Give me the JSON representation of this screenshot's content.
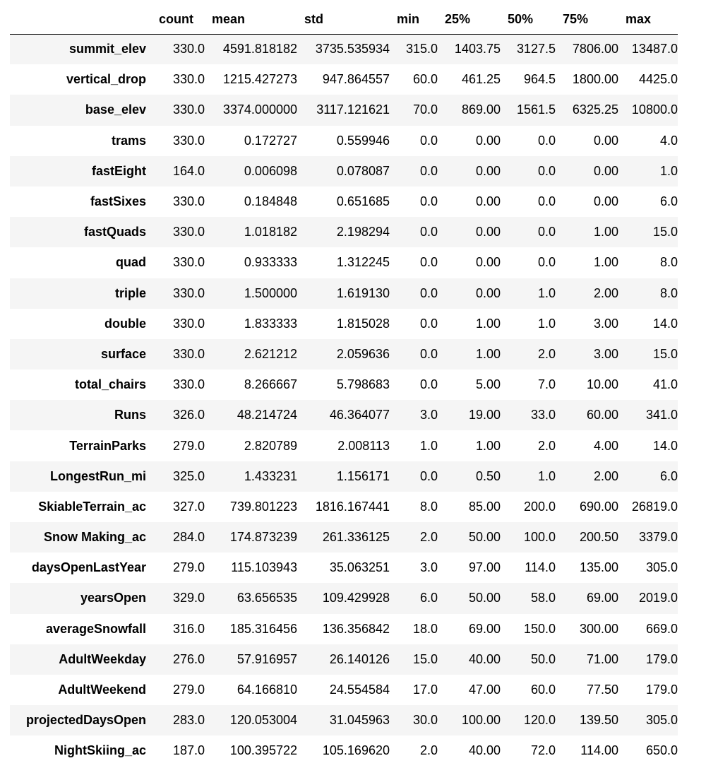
{
  "columns": [
    "count",
    "mean",
    "std",
    "min",
    "25%",
    "50%",
    "75%",
    "max"
  ],
  "rows": [
    {
      "label": "summit_elev",
      "values": [
        "330.0",
        "4591.818182",
        "3735.535934",
        "315.0",
        "1403.75",
        "3127.5",
        "7806.00",
        "13487.0"
      ]
    },
    {
      "label": "vertical_drop",
      "values": [
        "330.0",
        "1215.427273",
        "947.864557",
        "60.0",
        "461.25",
        "964.5",
        "1800.00",
        "4425.0"
      ]
    },
    {
      "label": "base_elev",
      "values": [
        "330.0",
        "3374.000000",
        "3117.121621",
        "70.0",
        "869.00",
        "1561.5",
        "6325.25",
        "10800.0"
      ]
    },
    {
      "label": "trams",
      "values": [
        "330.0",
        "0.172727",
        "0.559946",
        "0.0",
        "0.00",
        "0.0",
        "0.00",
        "4.0"
      ]
    },
    {
      "label": "fastEight",
      "values": [
        "164.0",
        "0.006098",
        "0.078087",
        "0.0",
        "0.00",
        "0.0",
        "0.00",
        "1.0"
      ]
    },
    {
      "label": "fastSixes",
      "values": [
        "330.0",
        "0.184848",
        "0.651685",
        "0.0",
        "0.00",
        "0.0",
        "0.00",
        "6.0"
      ]
    },
    {
      "label": "fastQuads",
      "values": [
        "330.0",
        "1.018182",
        "2.198294",
        "0.0",
        "0.00",
        "0.0",
        "1.00",
        "15.0"
      ]
    },
    {
      "label": "quad",
      "values": [
        "330.0",
        "0.933333",
        "1.312245",
        "0.0",
        "0.00",
        "0.0",
        "1.00",
        "8.0"
      ]
    },
    {
      "label": "triple",
      "values": [
        "330.0",
        "1.500000",
        "1.619130",
        "0.0",
        "0.00",
        "1.0",
        "2.00",
        "8.0"
      ]
    },
    {
      "label": "double",
      "values": [
        "330.0",
        "1.833333",
        "1.815028",
        "0.0",
        "1.00",
        "1.0",
        "3.00",
        "14.0"
      ]
    },
    {
      "label": "surface",
      "values": [
        "330.0",
        "2.621212",
        "2.059636",
        "0.0",
        "1.00",
        "2.0",
        "3.00",
        "15.0"
      ]
    },
    {
      "label": "total_chairs",
      "values": [
        "330.0",
        "8.266667",
        "5.798683",
        "0.0",
        "5.00",
        "7.0",
        "10.00",
        "41.0"
      ]
    },
    {
      "label": "Runs",
      "values": [
        "326.0",
        "48.214724",
        "46.364077",
        "3.0",
        "19.00",
        "33.0",
        "60.00",
        "341.0"
      ]
    },
    {
      "label": "TerrainParks",
      "values": [
        "279.0",
        "2.820789",
        "2.008113",
        "1.0",
        "1.00",
        "2.0",
        "4.00",
        "14.0"
      ]
    },
    {
      "label": "LongestRun_mi",
      "values": [
        "325.0",
        "1.433231",
        "1.156171",
        "0.0",
        "0.50",
        "1.0",
        "2.00",
        "6.0"
      ]
    },
    {
      "label": "SkiableTerrain_ac",
      "values": [
        "327.0",
        "739.801223",
        "1816.167441",
        "8.0",
        "85.00",
        "200.0",
        "690.00",
        "26819.0"
      ]
    },
    {
      "label": "Snow Making_ac",
      "values": [
        "284.0",
        "174.873239",
        "261.336125",
        "2.0",
        "50.00",
        "100.0",
        "200.50",
        "3379.0"
      ]
    },
    {
      "label": "daysOpenLastYear",
      "values": [
        "279.0",
        "115.103943",
        "35.063251",
        "3.0",
        "97.00",
        "114.0",
        "135.00",
        "305.0"
      ]
    },
    {
      "label": "yearsOpen",
      "values": [
        "329.0",
        "63.656535",
        "109.429928",
        "6.0",
        "50.00",
        "58.0",
        "69.00",
        "2019.0"
      ]
    },
    {
      "label": "averageSnowfall",
      "values": [
        "316.0",
        "185.316456",
        "136.356842",
        "18.0",
        "69.00",
        "150.0",
        "300.00",
        "669.0"
      ]
    },
    {
      "label": "AdultWeekday",
      "values": [
        "276.0",
        "57.916957",
        "26.140126",
        "15.0",
        "40.00",
        "50.0",
        "71.00",
        "179.0"
      ]
    },
    {
      "label": "AdultWeekend",
      "values": [
        "279.0",
        "64.166810",
        "24.554584",
        "17.0",
        "47.00",
        "60.0",
        "77.50",
        "179.0"
      ]
    },
    {
      "label": "projectedDaysOpen",
      "values": [
        "283.0",
        "120.053004",
        "31.045963",
        "30.0",
        "100.00",
        "120.0",
        "139.50",
        "305.0"
      ]
    },
    {
      "label": "NightSkiing_ac",
      "values": [
        "187.0",
        "100.395722",
        "105.169620",
        "2.0",
        "40.00",
        "72.0",
        "114.00",
        "650.0"
      ]
    }
  ]
}
